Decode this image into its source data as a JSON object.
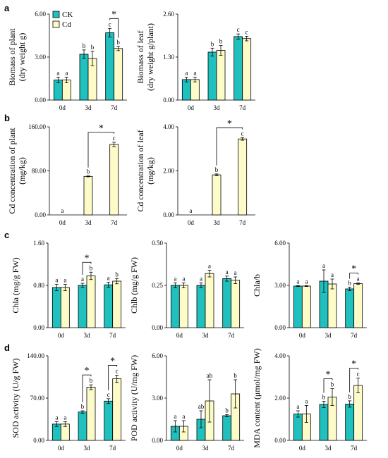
{
  "colors": {
    "CK": "#1fc0bd",
    "Cd": "#fdfcc8"
  },
  "legend": [
    "CK",
    "Cd"
  ],
  "panel_letters": [
    "a",
    "b",
    "c",
    "d"
  ],
  "chart_data": [
    {
      "type": "bar",
      "panel": "a",
      "ylabel": [
        "Biomass of plant",
        "(dry weight g)"
      ],
      "ylim": [
        0,
        6
      ],
      "yticks": [
        "0.00",
        "3.00",
        "6.00"
      ],
      "categories": [
        "0d",
        "3d",
        "7d"
      ],
      "series": [
        {
          "name": "CK",
          "values": [
            1.4,
            3.2,
            4.7
          ],
          "errors": [
            0.2,
            0.3,
            0.3
          ],
          "letters": [
            "a",
            "b",
            "c"
          ]
        },
        {
          "name": "Cd",
          "values": [
            1.4,
            2.9,
            3.6
          ],
          "errors": [
            0.2,
            0.5,
            0.15
          ],
          "letters": [
            "a",
            "b",
            "b"
          ]
        }
      ],
      "brackets": [
        {
          "from": [
            2,
            0
          ],
          "to": [
            2,
            1
          ],
          "label": "*"
        }
      ]
    },
    {
      "type": "bar",
      "panel": "a",
      "ylabel": [
        "Biomass of leaf",
        "(dry weight g/plant)"
      ],
      "ylim": [
        0,
        2.6
      ],
      "yticks": [
        "0.00",
        "1.30",
        "2.60"
      ],
      "categories": [
        "0d",
        "3d",
        "7d"
      ],
      "series": [
        {
          "name": "CK",
          "values": [
            0.62,
            1.45,
            1.92
          ],
          "errors": [
            0.07,
            0.12,
            0.08
          ],
          "letters": [
            "a",
            "b",
            "c"
          ]
        },
        {
          "name": "Cd",
          "values": [
            0.62,
            1.5,
            1.86
          ],
          "errors": [
            0.07,
            0.15,
            0.07
          ],
          "letters": [
            "a",
            "b",
            "c"
          ]
        }
      ],
      "brackets": []
    },
    {
      "type": "bar",
      "panel": "b",
      "ylabel": [
        "Cd concentration of plant",
        "(mg/kg)"
      ],
      "ylim": [
        0,
        160
      ],
      "yticks": [
        "0.00",
        "80.00",
        "160.00"
      ],
      "categories": [
        "0d",
        "3d",
        "7d"
      ],
      "series": [
        {
          "name": "Cd",
          "values": [
            0,
            70,
            128
          ],
          "errors": [
            0,
            0.8,
            4
          ],
          "letters": [
            "a",
            "b",
            "c"
          ]
        }
      ],
      "brackets": [
        {
          "from": [
            1,
            0
          ],
          "to": [
            2,
            0
          ],
          "label": "*"
        }
      ]
    },
    {
      "type": "bar",
      "panel": "b",
      "ylabel": [
        "Cd concentration of leaf",
        "(mg/kg)"
      ],
      "ylim": [
        0,
        4
      ],
      "yticks": [
        "0.00",
        "2.00",
        "4.00"
      ],
      "categories": [
        "0d",
        "3d",
        "7d"
      ],
      "series": [
        {
          "name": "Cd",
          "values": [
            0,
            1.82,
            3.45
          ],
          "errors": [
            0,
            0.04,
            0.06
          ],
          "letters": [
            "a",
            "b",
            "c"
          ]
        }
      ],
      "brackets": [
        {
          "from": [
            1,
            0
          ],
          "to": [
            2,
            0
          ],
          "label": "*"
        }
      ]
    },
    {
      "type": "bar",
      "panel": "c",
      "ylabel": [
        "Chla (mg/g FW)"
      ],
      "ylim": [
        0,
        1.6
      ],
      "yticks": [
        "0.00",
        "0.80",
        "1.60"
      ],
      "categories": [
        "0d",
        "3d",
        "7d"
      ],
      "series": [
        {
          "name": "CK",
          "values": [
            0.76,
            0.8,
            0.81
          ],
          "errors": [
            0.06,
            0.04,
            0.05
          ],
          "letters": [
            "a",
            "a",
            "a"
          ]
        },
        {
          "name": "Cd",
          "values": [
            0.76,
            0.98,
            0.88
          ],
          "errors": [
            0.06,
            0.07,
            0.05
          ],
          "letters": [
            "a",
            "b",
            "b"
          ]
        }
      ],
      "brackets": [
        {
          "from": [
            1,
            0
          ],
          "to": [
            1,
            1
          ],
          "label": "*"
        }
      ]
    },
    {
      "type": "bar",
      "panel": "c",
      "ylabel": [
        "Chlb (mg/g FW)"
      ],
      "ylim": [
        0,
        0.5
      ],
      "yticks": [
        "0.00",
        "0.25",
        "0.50"
      ],
      "categories": [
        "0d",
        "3d",
        "7d"
      ],
      "series": [
        {
          "name": "CK",
          "values": [
            0.25,
            0.25,
            0.29
          ],
          "errors": [
            0.015,
            0.015,
            0.015
          ],
          "letters": [
            "a",
            "a",
            "a"
          ]
        },
        {
          "name": "Cd",
          "values": [
            0.25,
            0.32,
            0.28
          ],
          "errors": [
            0.015,
            0.02,
            0.02
          ],
          "letters": [
            "a",
            "a",
            "a"
          ]
        }
      ],
      "brackets": []
    },
    {
      "type": "bar",
      "panel": "c",
      "ylabel": [
        "Chla/b"
      ],
      "ylim": [
        0,
        6
      ],
      "yticks": [
        "0.00",
        "3.00",
        "6.00"
      ],
      "categories": [
        "0d",
        "3d",
        "7d"
      ],
      "series": [
        {
          "name": "CK",
          "values": [
            2.95,
            3.3,
            2.75
          ],
          "errors": [
            0.03,
            0.8,
            0.12
          ],
          "letters": [
            "a",
            "a",
            "b"
          ]
        },
        {
          "name": "Cd",
          "values": [
            2.95,
            3.1,
            3.12
          ],
          "errors": [
            0.03,
            0.35,
            0.05
          ],
          "letters": [
            "a",
            "a",
            "a"
          ]
        }
      ],
      "brackets": [
        {
          "from": [
            2,
            0
          ],
          "to": [
            2,
            1
          ],
          "label": "*"
        }
      ]
    },
    {
      "type": "bar",
      "panel": "d",
      "ylabel": [
        "SOD activity (U/g FW)"
      ],
      "ylim": [
        0,
        140
      ],
      "yticks": [
        "0.00",
        "70.00",
        "140.00"
      ],
      "categories": [
        "0d",
        "3d",
        "7d"
      ],
      "series": [
        {
          "name": "CK",
          "values": [
            27,
            47,
            65
          ],
          "errors": [
            4,
            2,
            4
          ],
          "letters": [
            "a",
            "b",
            "c"
          ]
        },
        {
          "name": "Cd",
          "values": [
            27,
            88,
            102
          ],
          "errors": [
            4,
            4,
            6
          ],
          "letters": [
            "a",
            "b",
            "c"
          ]
        }
      ],
      "brackets": [
        {
          "from": [
            1,
            0
          ],
          "to": [
            1,
            1
          ],
          "label": "*"
        },
        {
          "from": [
            2,
            0
          ],
          "to": [
            2,
            1
          ],
          "label": "*"
        }
      ]
    },
    {
      "type": "bar",
      "panel": "d",
      "ylabel": [
        "POD activity (U/mg FW)"
      ],
      "ylim": [
        0,
        6
      ],
      "yticks": [
        "0.00",
        "3.00",
        "6.00"
      ],
      "categories": [
        "0d",
        "3d",
        "7d"
      ],
      "series": [
        {
          "name": "CK",
          "values": [
            1.0,
            1.5,
            1.75
          ],
          "errors": [
            0.4,
            0.6,
            0.08
          ],
          "letters": [
            "a",
            "ab",
            "b"
          ]
        },
        {
          "name": "Cd",
          "values": [
            1.0,
            2.8,
            3.3
          ],
          "errors": [
            0.4,
            1.5,
            1.0
          ],
          "letters": [
            "a",
            "ab",
            "b"
          ]
        }
      ],
      "brackets": []
    },
    {
      "type": "bar",
      "panel": "d",
      "ylabel": [
        "MDA content (μmol/mg FW)"
      ],
      "ylim": [
        0,
        4
      ],
      "yticks": [
        "0.00",
        "2.00",
        "4.00"
      ],
      "categories": [
        "0d",
        "3d",
        "7d"
      ],
      "series": [
        {
          "name": "CK",
          "values": [
            1.25,
            1.7,
            1.72
          ],
          "errors": [
            0.15,
            0.15,
            0.15
          ],
          "letters": [
            "a",
            "b",
            "b"
          ]
        },
        {
          "name": "Cd",
          "values": [
            1.25,
            2.05,
            2.6
          ],
          "errors": [
            0.4,
            0.4,
            0.35
          ],
          "letters": [
            "a",
            "b",
            "c"
          ]
        }
      ],
      "brackets": [
        {
          "from": [
            1,
            0
          ],
          "to": [
            1,
            1
          ],
          "label": "*"
        },
        {
          "from": [
            2,
            0
          ],
          "to": [
            2,
            1
          ],
          "label": "*"
        }
      ]
    }
  ]
}
